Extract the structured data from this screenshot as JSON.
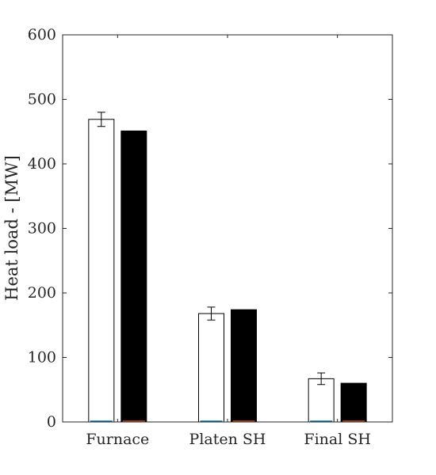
{
  "chart_data": {
    "type": "bar",
    "title": "",
    "xlabel": "",
    "ylabel": "Heat load - [MW]",
    "categories": [
      "Furnace",
      "Platen SH",
      "Final SH"
    ],
    "series": [
      {
        "fill": "#ffffff",
        "values": [
          469,
          168,
          67
        ],
        "error": [
          11,
          10,
          9
        ]
      },
      {
        "fill": "#000000",
        "values": [
          451,
          174,
          60
        ]
      }
    ],
    "ylim": [
      0,
      600
    ],
    "yticks": [
      0,
      100,
      200,
      300,
      400,
      500,
      600
    ],
    "grid": false,
    "legend": "none",
    "colors": {
      "axis": "#262626",
      "bar_outline": "#000000",
      "baseline_accent_1": "#0072bd",
      "baseline_accent_2": "#d95319"
    }
  }
}
